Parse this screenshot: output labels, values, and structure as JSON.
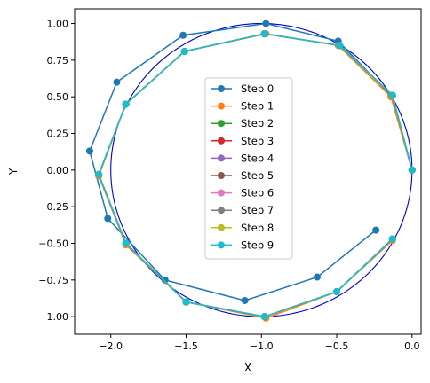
{
  "chart_data": {
    "type": "line",
    "title": "",
    "xlabel": "X",
    "ylabel": "Y",
    "xlim": [
      -2.24,
      0.06
    ],
    "ylim": [
      -1.12,
      1.1
    ],
    "xticks": [
      -2.0,
      -1.5,
      -1.0,
      -0.5,
      0.0
    ],
    "yticks": [
      -1.0,
      -0.75,
      -0.5,
      -0.25,
      0.0,
      0.25,
      0.5,
      0.75,
      1.0
    ],
    "xtick_labels": [
      "−2.0",
      "−1.5",
      "−1.0",
      "−0.5",
      "0.0"
    ],
    "ytick_labels": [
      "−1.00",
      "−0.75",
      "−0.50",
      "−0.25",
      "0.00",
      "0.25",
      "0.50",
      "0.75",
      "1.00"
    ],
    "grid": false,
    "legend_position": "center",
    "reference_circle": {
      "center": [
        -1.0,
        0.0
      ],
      "radius": 1.0,
      "color": "#0000cd"
    },
    "series": [
      {
        "name": "Step 0",
        "color": "#1f77b4",
        "x": [
          0.0,
          -0.14,
          -0.49,
          -0.97,
          -1.52,
          -1.96,
          -2.14,
          -2.02,
          -1.64,
          -1.11,
          -0.63,
          -0.24
        ],
        "y": [
          0.0,
          0.51,
          0.88,
          1.0,
          0.92,
          0.6,
          0.13,
          -0.33,
          -0.75,
          -0.89,
          -0.73,
          -0.41
        ]
      },
      {
        "name": "Step 1",
        "color": "#ff7f0e",
        "x": [
          0.0,
          -0.14,
          -0.49,
          -0.97,
          -1.51,
          -1.9,
          -2.08,
          -1.9,
          -1.5,
          -0.97,
          -0.5,
          -0.13
        ],
        "y": [
          0.0,
          0.5,
          0.85,
          0.93,
          0.81,
          0.45,
          -0.04,
          -0.51,
          -0.9,
          -1.01,
          -0.83,
          -0.48
        ]
      },
      {
        "name": "Step 2",
        "color": "#2ca02c",
        "x": [
          0.0,
          -0.13,
          -0.48,
          -0.98,
          -1.51,
          -1.9,
          -2.08,
          -1.9,
          -1.5,
          -0.98,
          -0.5,
          -0.13
        ],
        "y": [
          0.0,
          0.51,
          0.85,
          0.93,
          0.81,
          0.45,
          -0.03,
          -0.5,
          -0.9,
          -1.0,
          -0.83,
          -0.47
        ]
      },
      {
        "name": "Step 3",
        "color": "#d62728",
        "x": [
          0.0,
          -0.13,
          -0.48,
          -0.98,
          -1.51,
          -1.9,
          -2.08,
          -1.9,
          -1.5,
          -0.98,
          -0.5,
          -0.13
        ],
        "y": [
          0.0,
          0.51,
          0.85,
          0.93,
          0.81,
          0.45,
          -0.03,
          -0.5,
          -0.9,
          -1.0,
          -0.83,
          -0.47
        ]
      },
      {
        "name": "Step 4",
        "color": "#9467bd",
        "x": [
          0.0,
          -0.13,
          -0.48,
          -0.98,
          -1.51,
          -1.9,
          -2.08,
          -1.9,
          -1.5,
          -0.98,
          -0.5,
          -0.13
        ],
        "y": [
          0.0,
          0.51,
          0.85,
          0.93,
          0.81,
          0.45,
          -0.03,
          -0.5,
          -0.9,
          -1.0,
          -0.83,
          -0.47
        ]
      },
      {
        "name": "Step 5",
        "color": "#8c564b",
        "x": [
          0.0,
          -0.13,
          -0.48,
          -0.98,
          -1.51,
          -1.9,
          -2.08,
          -1.9,
          -1.5,
          -0.98,
          -0.5,
          -0.13
        ],
        "y": [
          0.0,
          0.51,
          0.85,
          0.93,
          0.81,
          0.45,
          -0.03,
          -0.5,
          -0.9,
          -1.0,
          -0.83,
          -0.47
        ]
      },
      {
        "name": "Step 6",
        "color": "#e377c2",
        "x": [
          0.0,
          -0.13,
          -0.48,
          -0.98,
          -1.51,
          -1.9,
          -2.08,
          -1.9,
          -1.5,
          -0.98,
          -0.5,
          -0.13
        ],
        "y": [
          0.0,
          0.51,
          0.85,
          0.93,
          0.81,
          0.45,
          -0.03,
          -0.5,
          -0.9,
          -1.0,
          -0.83,
          -0.47
        ]
      },
      {
        "name": "Step 7",
        "color": "#7f7f7f",
        "x": [
          0.0,
          -0.13,
          -0.48,
          -0.98,
          -1.51,
          -1.9,
          -2.08,
          -1.9,
          -1.5,
          -0.98,
          -0.5,
          -0.13
        ],
        "y": [
          0.0,
          0.51,
          0.85,
          0.93,
          0.81,
          0.45,
          -0.03,
          -0.5,
          -0.9,
          -1.0,
          -0.83,
          -0.47
        ]
      },
      {
        "name": "Step 8",
        "color": "#bcbd22",
        "x": [
          0.0,
          -0.13,
          -0.48,
          -0.98,
          -1.51,
          -1.9,
          -2.08,
          -1.9,
          -1.5,
          -0.98,
          -0.5,
          -0.13
        ],
        "y": [
          0.0,
          0.51,
          0.85,
          0.93,
          0.81,
          0.45,
          -0.03,
          -0.5,
          -0.9,
          -1.0,
          -0.83,
          -0.47
        ]
      },
      {
        "name": "Step 9",
        "color": "#17becf",
        "x": [
          0.0,
          -0.13,
          -0.48,
          -0.98,
          -1.51,
          -1.9,
          -2.08,
          -1.9,
          -1.5,
          -0.98,
          -0.5,
          -0.13
        ],
        "y": [
          0.0,
          0.51,
          0.85,
          0.93,
          0.81,
          0.45,
          -0.03,
          -0.5,
          -0.9,
          -1.0,
          -0.83,
          -0.47
        ]
      }
    ]
  }
}
